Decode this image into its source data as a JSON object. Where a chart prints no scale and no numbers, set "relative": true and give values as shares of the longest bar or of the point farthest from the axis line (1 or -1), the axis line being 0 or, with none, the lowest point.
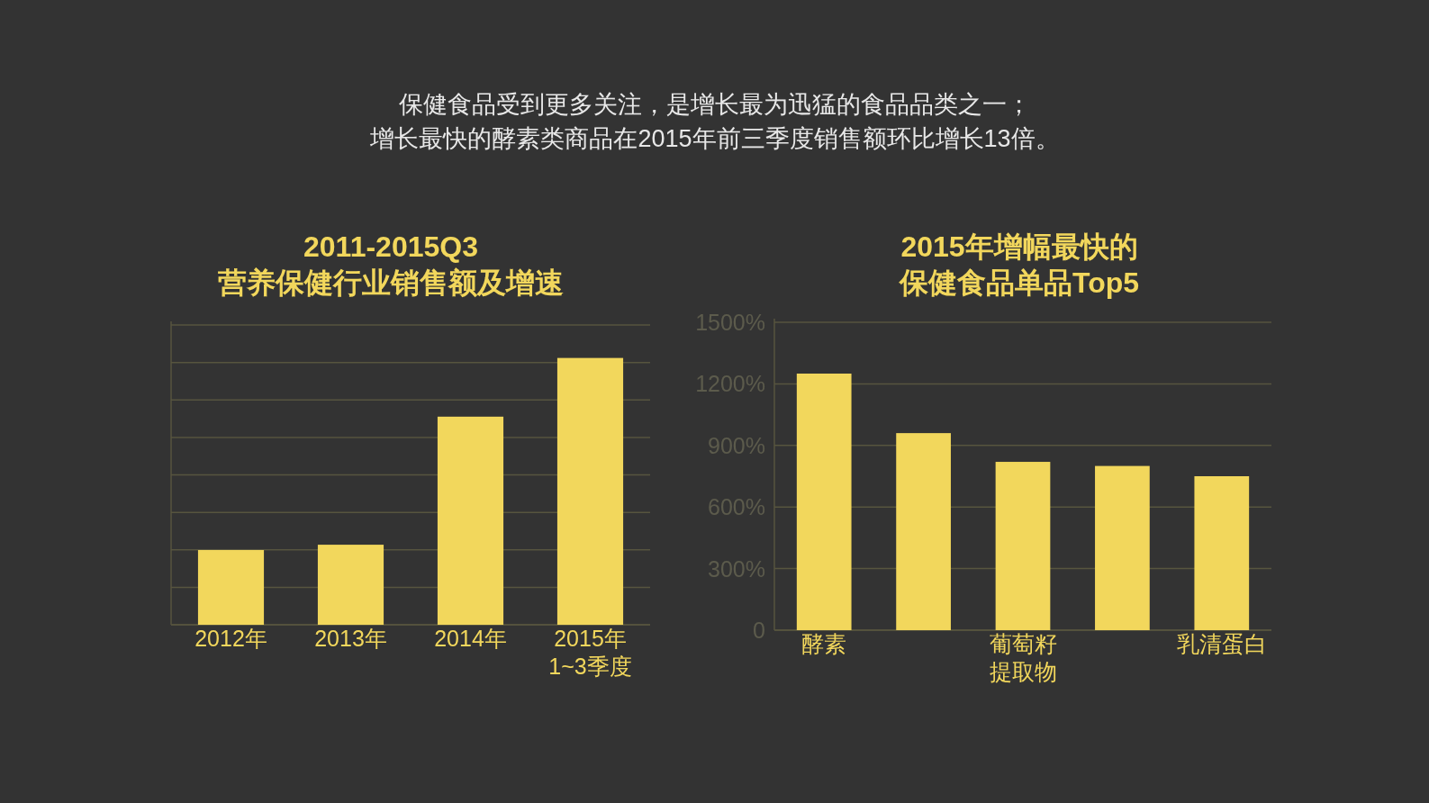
{
  "chart_data": [
    {
      "type": "other",
      "title": "保健食品受到更多关注，是增长最为迅猛的食品品类之一；",
      "subtitle": "增长最快的酵素类商品在2015年前三季度销售额环比增长13倍。"
    },
    {
      "type": "bar",
      "title": "2011-2015Q3\n营养保健行业销售额及增速",
      "categories": [
        "2012年",
        "2013年",
        "2014年",
        "2015年\n1~3季度"
      ],
      "values": [
        0.28,
        0.3,
        0.78,
        1
      ],
      "color": "#f2d75c",
      "relative": true,
      "grid": true
    },
    {
      "type": "bar",
      "title": "2015年增幅最快的",
      "subtitle": "保健食品单品Top5",
      "categories": [
        "酵素",
        null,
        "葡萄籽提取物",
        null,
        "乳清蛋白"
      ],
      "values": [
        1250,
        960,
        820,
        800,
        750
      ],
      "color": "#f2d75c",
      "ylim": [
        0,
        1500
      ],
      "yticks": [
        0,
        {
          "value": 300,
          "label": "300%"
        },
        {
          "value": 600,
          "label": "600%"
        },
        {
          "value": 900,
          "label": "900%"
        },
        {
          "value": 1200,
          "label": "1200%"
        },
        {
          "value": 1500,
          "label": "1500%"
        }
      ],
      "grid": true
    }
  ]
}
